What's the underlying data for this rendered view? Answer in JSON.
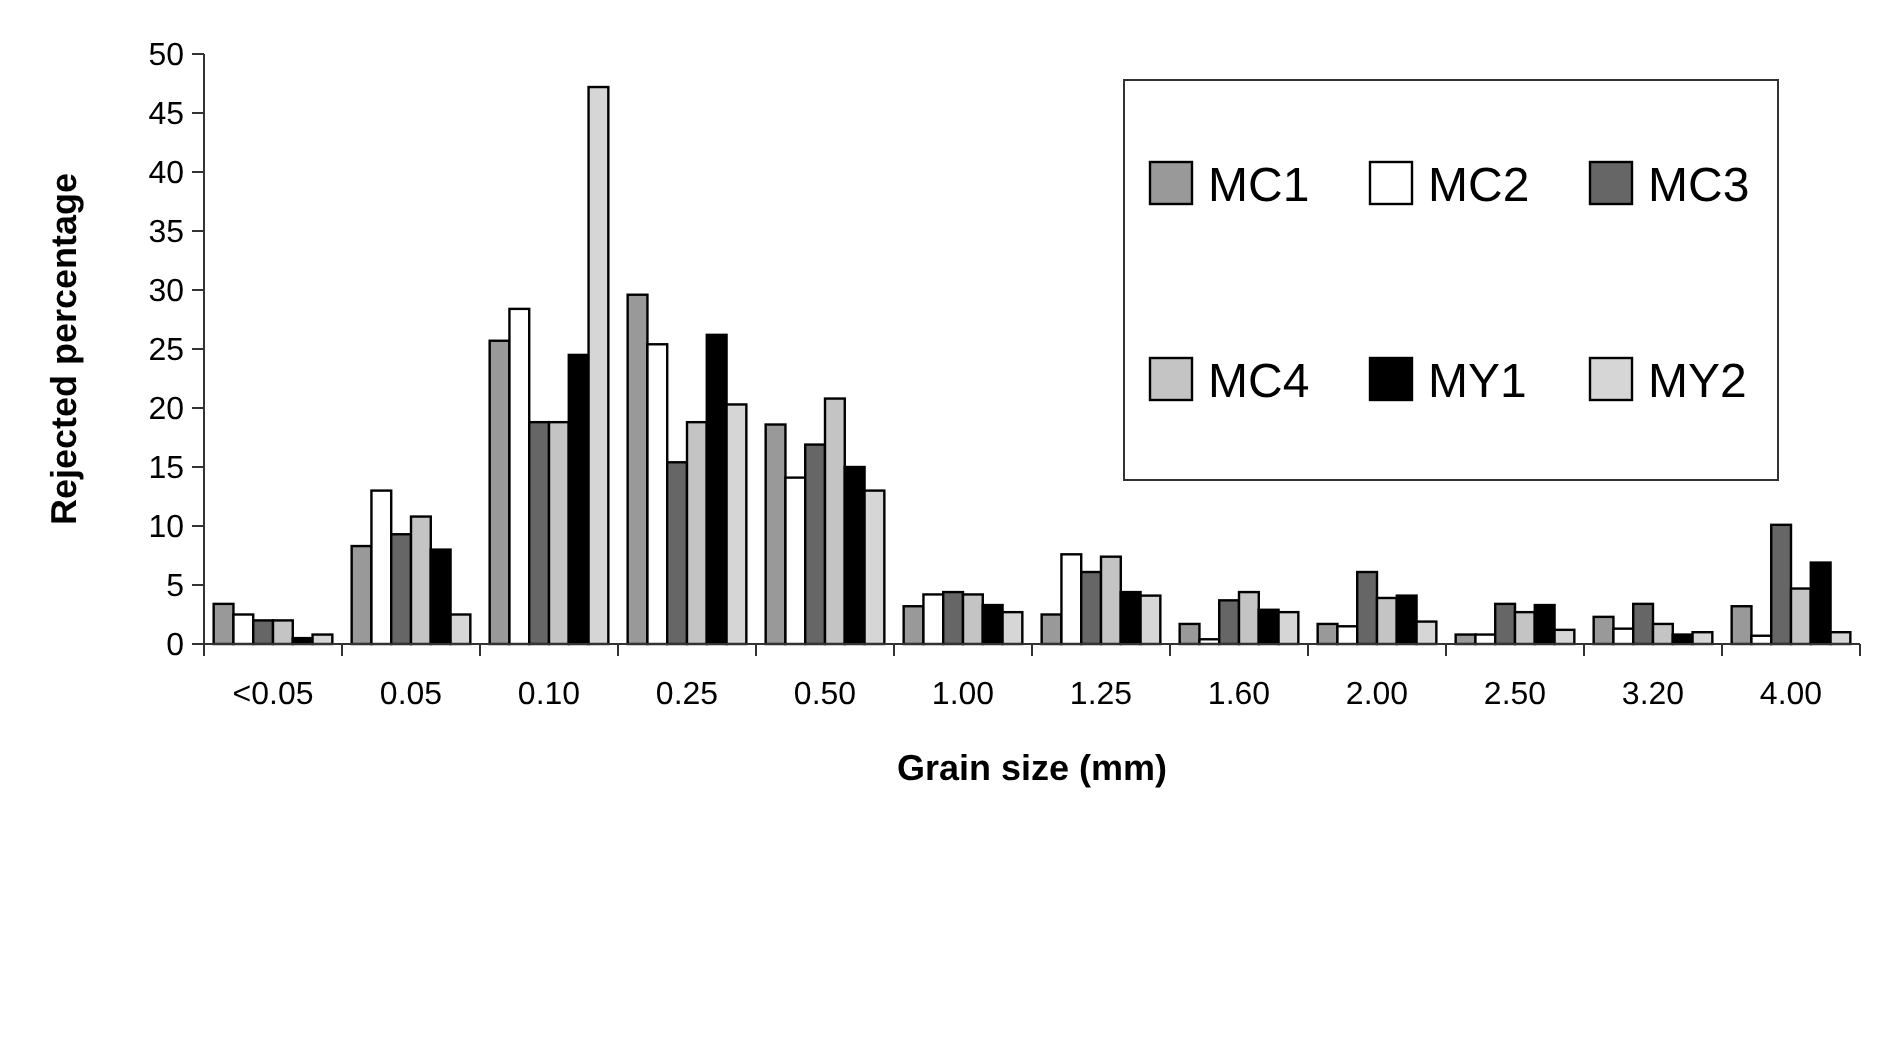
{
  "chart_data": {
    "type": "bar",
    "xlabel": "Grain size (mm)",
    "ylabel": "Rejected percentage",
    "categories": [
      "<0.05",
      "0.05",
      "0.10",
      "0.25",
      "0.50",
      "1.00",
      "1.25",
      "1.60",
      "2.00",
      "2.50",
      "3.20",
      "4.00"
    ],
    "series": [
      {
        "name": "MC1",
        "color": "#999999",
        "values": [
          3.4,
          8.3,
          25.7,
          29.6,
          18.6,
          3.2,
          2.5,
          1.7,
          1.7,
          0.8,
          2.3,
          3.2
        ]
      },
      {
        "name": "MC2",
        "color": "#ffffff",
        "values": [
          2.5,
          13,
          28.4,
          25.4,
          14.1,
          4.2,
          7.6,
          0.4,
          1.5,
          0.8,
          1.3,
          0.7
        ]
      },
      {
        "name": "MC3",
        "color": "#666666",
        "values": [
          2,
          9.3,
          18.8,
          15.4,
          16.9,
          4.4,
          6.1,
          3.7,
          6.1,
          3.4,
          3.4,
          10.1
        ]
      },
      {
        "name": "MC4",
        "color": "#c4c4c4",
        "values": [
          2,
          10.8,
          18.8,
          18.8,
          20.8,
          4.2,
          7.4,
          4.4,
          3.9,
          2.7,
          1.7,
          4.7
        ]
      },
      {
        "name": "MY1",
        "color": "#000000",
        "values": [
          0.5,
          8,
          24.5,
          26.2,
          15,
          3.3,
          4.4,
          2.9,
          4.1,
          3.3,
          0.8,
          6.9
        ]
      },
      {
        "name": "MY2",
        "color": "#d6d6d6",
        "values": [
          0.8,
          2.5,
          47.2,
          20.3,
          13,
          2.7,
          4.1,
          2.7,
          1.9,
          1.2,
          1,
          1
        ]
      }
    ],
    "ylim": [
      0,
      50
    ],
    "yticks": [
      0,
      5,
      10,
      15,
      20,
      25,
      30,
      35,
      40,
      45,
      50
    ],
    "grid": false,
    "legend": "top right"
  }
}
